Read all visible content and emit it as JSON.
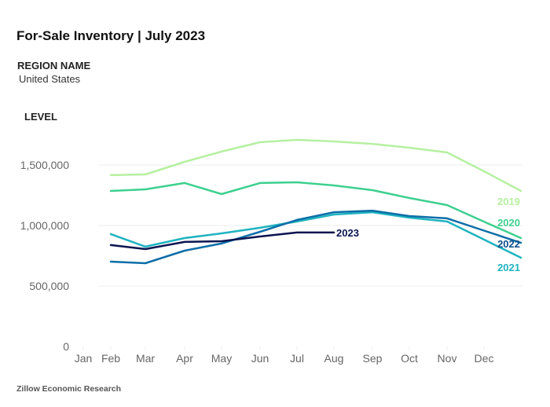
{
  "header": {
    "title": "For-Sale Inventory | July 2023",
    "region_label": "REGION NAME",
    "region_value": "United States",
    "level_label": "LEVEL"
  },
  "footer": {
    "source": "Zillow Economic Research"
  },
  "chart_data": {
    "type": "line",
    "title": "For-Sale Inventory | July 2023",
    "xlabel": "",
    "ylabel": "LEVEL",
    "x_tick_labels": [
      "Jan",
      "Feb",
      "Mar",
      "Apr",
      "May",
      "Jun",
      "Jul",
      "Aug",
      "Sep",
      "Oct",
      "Nov",
      "Dec"
    ],
    "x": [
      "Feb",
      "Mar",
      "Apr",
      "May",
      "Jun",
      "Jul",
      "Aug",
      "Sep",
      "Oct",
      "Nov",
      "Dec",
      "Jan (next)"
    ],
    "y_ticks": [
      0,
      500000,
      1000000,
      1500000
    ],
    "y_tick_labels": [
      "0",
      "500,000",
      "1,000,000",
      "1,500,000"
    ],
    "ylim": [
      0,
      1750000
    ],
    "grid": true,
    "legend": "inline labels at right end of each line",
    "series": [
      {
        "name": "2019",
        "color": "#b6f0a0",
        "label_color": "#b6f0a0",
        "values": [
          1416000,
          1422000,
          1526000,
          1611000,
          1688000,
          1708000,
          1695000,
          1675000,
          1643000,
          1604000,
          1448000,
          1286000
        ]
      },
      {
        "name": "2020",
        "color": "#3dd08f",
        "label_color": "#3dd08f",
        "values": [
          1286000,
          1299000,
          1351000,
          1260000,
          1351000,
          1357000,
          1331000,
          1292000,
          1227000,
          1169000,
          1032000,
          896000
        ]
      },
      {
        "name": "2021",
        "color": "#1fb3c0",
        "label_color": "#1fb3c0",
        "values": [
          929000,
          825000,
          896000,
          935000,
          981000,
          1033000,
          1091000,
          1110000,
          1065000,
          1033000,
          884000,
          734000
        ]
      },
      {
        "name": "2022",
        "color": "#0d6ea8",
        "label_color": "#0b4f8a",
        "values": [
          701000,
          688000,
          792000,
          851000,
          948000,
          1046000,
          1110000,
          1123000,
          1078000,
          1059000,
          958000,
          857000
        ]
      },
      {
        "name": "2023",
        "color": "#0a1550",
        "label_color": "#0a1550",
        "values": [
          838000,
          805000,
          864000,
          870000,
          909000,
          942000,
          942000
        ]
      }
    ]
  }
}
